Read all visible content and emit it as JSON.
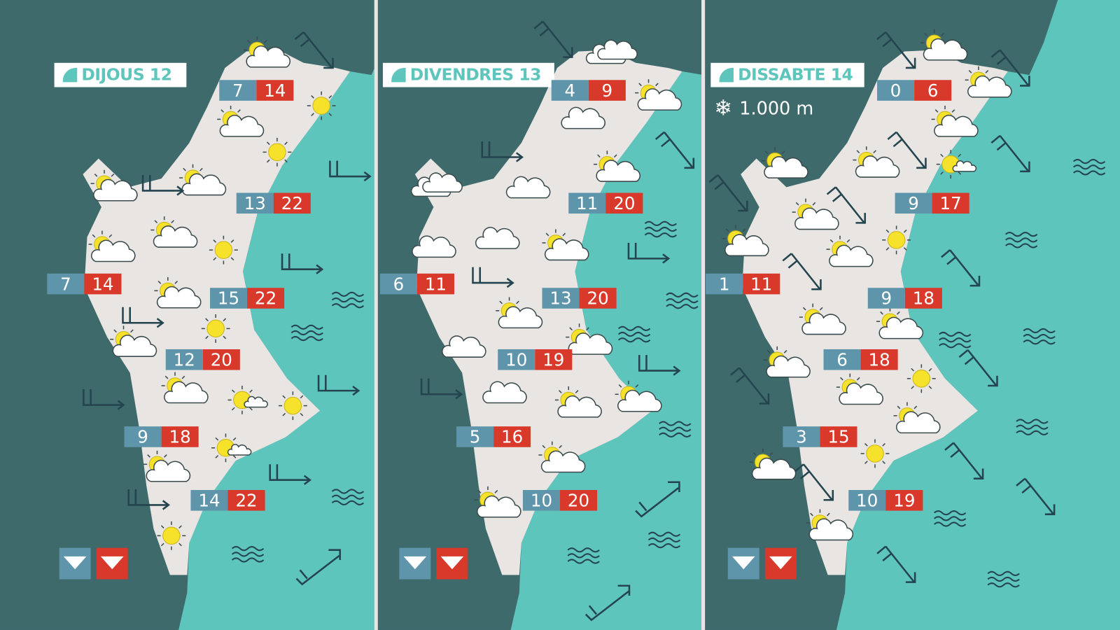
{
  "colors": {
    "background": "#3e6a6b",
    "sea": "#5ec5bd",
    "land": "#e8e5e2",
    "min_temp": "#5e95aa",
    "max_temp": "#d8392a",
    "sun": "#f7e22b",
    "accent": "#5ec5bd"
  },
  "panels": [
    {
      "title": "DIJOUS 12",
      "temps": [
        {
          "min": "7",
          "max": "14"
        },
        {
          "min": "13",
          "max": "22"
        },
        {
          "min": "7",
          "max": "14"
        },
        {
          "min": "15",
          "max": "22"
        },
        {
          "min": "12",
          "max": "20"
        },
        {
          "min": "9",
          "max": "18"
        },
        {
          "min": "14",
          "max": "22"
        }
      ],
      "icons": [
        "sun-cloud",
        "sun-cloud",
        "sun-cloud",
        "sun-cloud",
        "sun-cloud",
        "sun-cloud",
        "sun-cloud",
        "sun-cloud",
        "sun-cloud",
        "sun-cloud",
        "sun",
        "sun",
        "sun",
        "sun",
        "sun",
        "sun",
        "sun-small-cloud",
        "sun-small-cloud"
      ],
      "winds": [
        "diagonal",
        "flat",
        "flat",
        "flat",
        "flat",
        "flat",
        "flat",
        "flat",
        "flat",
        "rising"
      ],
      "sea_state": [
        "waves",
        "waves",
        "waves",
        "waves"
      ]
    },
    {
      "title": "DIVENDRES 13",
      "temps": [
        {
          "min": "4",
          "max": "9"
        },
        {
          "min": "11",
          "max": "20"
        },
        {
          "min": "6",
          "max": "11"
        },
        {
          "min": "13",
          "max": "20"
        },
        {
          "min": "10",
          "max": "19"
        },
        {
          "min": "5",
          "max": "16"
        },
        {
          "min": "10",
          "max": "20"
        }
      ],
      "icons": [
        "sun-cloud",
        "sun-cloud",
        "sun-cloud",
        "sun-cloud",
        "sun-cloud",
        "sun-cloud",
        "sun-cloud",
        "sun-cloud",
        "sun-cloud",
        "clouds",
        "cloud",
        "cloud",
        "cloud",
        "cloud",
        "cloud",
        "cloud",
        "clouds"
      ],
      "winds": [
        "diagonal",
        "flat",
        "diagonal",
        "flat",
        "flat",
        "flat",
        "flat",
        "rising",
        "rising"
      ],
      "sea_state": [
        "waves",
        "waves",
        "waves",
        "waves",
        "waves",
        "waves"
      ]
    },
    {
      "title": "DISSABTE 14",
      "snow_level": "1.000 m",
      "temps": [
        {
          "min": "0",
          "max": "6"
        },
        {
          "min": "9",
          "max": "17"
        },
        {
          "min": "1",
          "max": "11"
        },
        {
          "min": "9",
          "max": "18"
        },
        {
          "min": "6",
          "max": "18"
        },
        {
          "min": "3",
          "max": "15"
        },
        {
          "min": "10",
          "max": "19"
        }
      ],
      "icons": [
        "sun-cloud",
        "sun-cloud",
        "sun-cloud",
        "sun-cloud",
        "sun-cloud",
        "sun-cloud",
        "sun-cloud",
        "sun-cloud",
        "sun-cloud",
        "sun-cloud",
        "sun-cloud",
        "sun-cloud",
        "sun-cloud",
        "sun-cloud",
        "sun-cloud",
        "sun",
        "sun",
        "sun",
        "sun-small-cloud"
      ],
      "winds": [
        "diagonal",
        "diagonal",
        "diagonal",
        "diagonal",
        "diagonal",
        "diagonal",
        "diagonal",
        "diagonal",
        "diagonal",
        "diagonal",
        "diagonal",
        "diagonal",
        "diagonal",
        "diagonal"
      ],
      "sea_state": [
        "waves",
        "waves",
        "waves",
        "waves",
        "waves",
        "waves",
        "waves"
      ]
    }
  ],
  "legend": {
    "min_icon": "triangle-down-icon",
    "max_icon": "triangle-down-icon"
  }
}
